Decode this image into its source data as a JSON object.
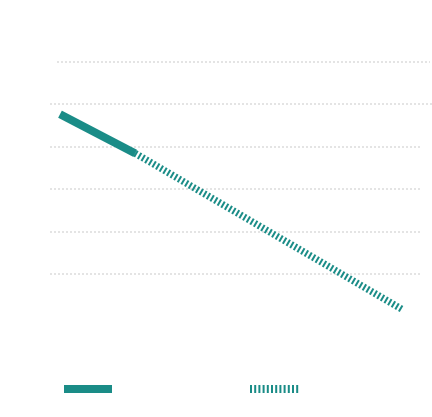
{
  "colors": {
    "series": "#1a8c87",
    "grid": "#c8c8c8",
    "background": "#ffffff"
  },
  "chart_data": {
    "type": "line",
    "title": "",
    "xlabel": "",
    "ylabel": "",
    "grid": true,
    "gridline_count": 6,
    "gridline_style": "dashed",
    "legend_position": "bottom",
    "series": [
      {
        "style": "solid",
        "points": [
          [
            0.0,
            0.8
          ],
          [
            0.219,
            0.65
          ]
        ]
      },
      {
        "style": "dashed",
        "points": [
          [
            0.219,
            0.65
          ],
          [
            1.0,
            0.05
          ]
        ]
      }
    ],
    "legend": [
      {
        "style": "solid"
      },
      {
        "style": "dashed"
      }
    ]
  }
}
